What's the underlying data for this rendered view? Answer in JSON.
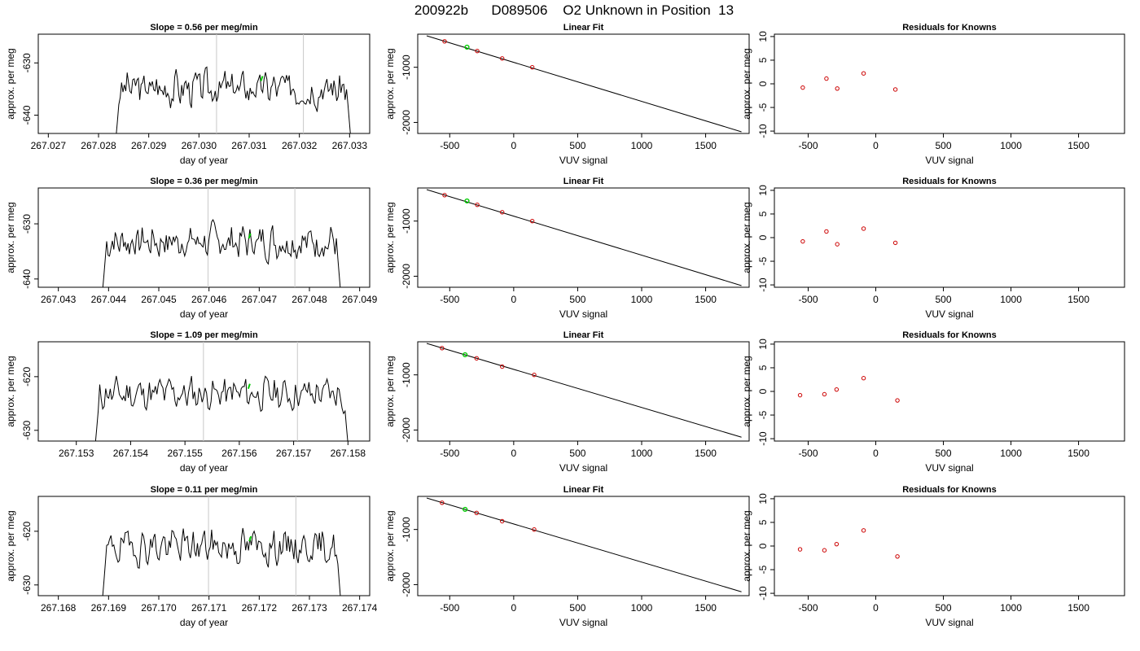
{
  "main_title": "200922b      D089506    O2 Unknown in Position  13",
  "colors": {
    "trace": "#000000",
    "vline": "#c8c8c8",
    "known_point": "#cc0000",
    "unknown_point": "#00cc00",
    "fit_line": "#000000"
  },
  "chart_data": [
    {
      "type": "line",
      "row": 1,
      "panel": "time-series",
      "title": "Slope =  0.56  per meg/min",
      "xlabel": "day of year",
      "ylabel": "approx. per meg",
      "xlim": [
        267.0268,
        267.0334
      ],
      "ylim": [
        -643.5,
        -624.5
      ],
      "xticks": [
        267.027,
        267.028,
        267.029,
        267.03,
        267.031,
        267.032,
        267.033
      ],
      "xtick_labels": [
        "267.027",
        "267.028",
        "267.029",
        "267.030",
        "267.031",
        "267.032",
        "267.033"
      ],
      "yticks": [
        -640,
        -630
      ],
      "ytick_labels": [
        "-640",
        "-630"
      ],
      "vlines": [
        267.03035,
        267.03208
      ],
      "series_range": [
        267.02832,
        267.03305
      ],
      "baseline": -634.8,
      "amplitude": 2.6,
      "seed": 3,
      "green_point": [
        267.03125,
        -633.0
      ]
    },
    {
      "type": "line",
      "row": 2,
      "panel": "time-series",
      "title": "Slope =  0.36  per meg/min",
      "xlabel": "day of year",
      "ylabel": "approx. per meg",
      "xlim": [
        267.0426,
        267.0492
      ],
      "ylim": [
        -641.5,
        -623.5
      ],
      "xticks": [
        267.043,
        267.044,
        267.045,
        267.046,
        267.047,
        267.048,
        267.049
      ],
      "xtick_labels": [
        "267.043",
        "267.044",
        "267.045",
        "267.046",
        "267.047",
        "267.048",
        "267.049"
      ],
      "yticks": [
        -640,
        -630
      ],
      "ytick_labels": [
        "-640",
        "-630"
      ],
      "vlines": [
        267.04598,
        267.04771
      ],
      "series_range": [
        267.04385,
        267.04865
      ],
      "baseline": -633.2,
      "amplitude": 2.4,
      "seed": 7,
      "green_point": [
        267.04681,
        -632.2
      ]
    },
    {
      "type": "line",
      "row": 3,
      "panel": "time-series",
      "title": "Slope =  1.09  per meg/min",
      "xlabel": "day of year",
      "ylabel": "approx. per meg",
      "xlim": [
        267.1523,
        267.1584
      ],
      "ylim": [
        -632.0,
        -613.5
      ],
      "xticks": [
        267.153,
        267.154,
        267.155,
        267.156,
        267.157,
        267.158
      ],
      "xtick_labels": [
        "267.153",
        "267.154",
        "267.155",
        "267.156",
        "267.157",
        "267.158"
      ],
      "yticks": [
        -630,
        -620
      ],
      "ytick_labels": [
        "-630",
        "-620"
      ],
      "vlines": [
        267.15534,
        267.15707
      ],
      "series_range": [
        267.15332,
        267.15803
      ],
      "baseline": -623.2,
      "amplitude": 2.4,
      "seed": 11,
      "green_point": [
        267.15618,
        -621.8
      ]
    },
    {
      "type": "line",
      "row": 4,
      "panel": "time-series",
      "title": "Slope =  0.11  per meg/min",
      "xlabel": "day of year",
      "ylabel": "approx. per meg",
      "xlim": [
        267.1676,
        267.1742
      ],
      "ylim": [
        -632.0,
        -613.5
      ],
      "xticks": [
        267.168,
        267.169,
        267.17,
        267.171,
        267.172,
        267.173,
        267.174
      ],
      "xtick_labels": [
        "267.168",
        "267.169",
        "267.170",
        "267.171",
        "267.172",
        "267.173",
        "267.174"
      ],
      "yticks": [
        -630,
        -620
      ],
      "ytick_labels": [
        "-630",
        "-620"
      ],
      "vlines": [
        267.17099,
        267.17273
      ],
      "series_range": [
        267.16885,
        267.17365
      ],
      "baseline": -622.8,
      "amplitude": 2.5,
      "seed": 19,
      "green_point": [
        267.17182,
        -621.4
      ]
    },
    {
      "type": "scatter",
      "row": 1,
      "panel": "fit",
      "title": "Linear Fit",
      "xlabel": "VUV signal",
      "ylabel": "approx. per meg",
      "xlim": [
        -750,
        1840
      ],
      "ylim": [
        -2200,
        -400
      ],
      "xticks": [
        -500,
        0,
        500,
        1000,
        1500
      ],
      "xtick_labels": [
        "-500",
        "0",
        "500",
        "1000",
        "1500"
      ],
      "yticks": [
        -2000,
        -1000
      ],
      "ytick_labels": [
        "-2000",
        "-1000"
      ],
      "fit_line": [
        [
          -680,
          -430
        ],
        [
          1780,
          -2170
        ]
      ],
      "known_points": [
        [
          -540,
          -530
        ],
        [
          -285,
          -705
        ],
        [
          -90,
          -840
        ],
        [
          145,
          -1000
        ]
      ],
      "unknown_point": [
        -365,
        -635
      ]
    },
    {
      "type": "scatter",
      "row": 2,
      "panel": "fit",
      "title": "Linear Fit",
      "xlabel": "VUV signal",
      "ylabel": "approx. per meg",
      "xlim": [
        -750,
        1840
      ],
      "ylim": [
        -2200,
        -400
      ],
      "xticks": [
        -500,
        0,
        500,
        1000,
        1500
      ],
      "xtick_labels": [
        "-500",
        "0",
        "500",
        "1000",
        "1500"
      ],
      "yticks": [
        -2000,
        -1000
      ],
      "ytick_labels": [
        "-2000",
        "-1000"
      ],
      "fit_line": [
        [
          -680,
          -430
        ],
        [
          1780,
          -2170
        ]
      ],
      "known_points": [
        [
          -540,
          -530
        ],
        [
          -285,
          -705
        ],
        [
          -90,
          -840
        ],
        [
          145,
          -1000
        ]
      ],
      "unknown_point": [
        -365,
        -635
      ]
    },
    {
      "type": "scatter",
      "row": 3,
      "panel": "fit",
      "title": "Linear Fit",
      "xlabel": "VUV signal",
      "ylabel": "approx. per meg",
      "xlim": [
        -750,
        1840
      ],
      "ylim": [
        -2200,
        -400
      ],
      "xticks": [
        -500,
        0,
        500,
        1000,
        1500
      ],
      "xtick_labels": [
        "-500",
        "0",
        "500",
        "1000",
        "1500"
      ],
      "yticks": [
        -2000,
        -1000
      ],
      "ytick_labels": [
        "-2000",
        "-1000"
      ],
      "fit_line": [
        [
          -680,
          -430
        ],
        [
          1780,
          -2130
        ]
      ],
      "known_points": [
        [
          -560,
          -515
        ],
        [
          -290,
          -700
        ],
        [
          -90,
          -850
        ],
        [
          160,
          -1000
        ]
      ],
      "unknown_point": [
        -380,
        -635
      ]
    },
    {
      "type": "scatter",
      "row": 4,
      "panel": "fit",
      "title": "Linear Fit",
      "xlabel": "VUV signal",
      "ylabel": "approx. per meg",
      "xlim": [
        -750,
        1840
      ],
      "ylim": [
        -2200,
        -400
      ],
      "xticks": [
        -500,
        0,
        500,
        1000,
        1500
      ],
      "xtick_labels": [
        "-500",
        "0",
        "500",
        "1000",
        "1500"
      ],
      "yticks": [
        -2000,
        -1000
      ],
      "ytick_labels": [
        "-2000",
        "-1000"
      ],
      "fit_line": [
        [
          -680,
          -430
        ],
        [
          1780,
          -2130
        ]
      ],
      "known_points": [
        [
          -560,
          -515
        ],
        [
          -290,
          -700
        ],
        [
          -90,
          -850
        ],
        [
          160,
          -1000
        ]
      ],
      "unknown_point": [
        -380,
        -635
      ]
    },
    {
      "type": "scatter",
      "row": 1,
      "panel": "residuals",
      "title": "Residuals for Knowns",
      "xlabel": "VUV signal",
      "ylabel": "approx. per meg",
      "xlim": [
        -750,
        1840
      ],
      "ylim": [
        -10.5,
        10.5
      ],
      "xticks": [
        -500,
        0,
        500,
        1000,
        1500
      ],
      "xtick_labels": [
        "-500",
        "0",
        "500",
        "1000",
        "1500"
      ],
      "yticks": [
        -10,
        -5,
        0,
        5,
        10
      ],
      "ytick_labels": [
        "-10",
        "-5",
        "0",
        "5",
        "10"
      ],
      "points": [
        [
          -540,
          -0.8
        ],
        [
          -365,
          1.1
        ],
        [
          -285,
          -1.0
        ],
        [
          -90,
          2.2
        ],
        [
          145,
          -1.2
        ]
      ]
    },
    {
      "type": "scatter",
      "row": 2,
      "panel": "residuals",
      "title": "Residuals for Knowns",
      "xlabel": "VUV signal",
      "ylabel": "approx. per meg",
      "xlim": [
        -750,
        1840
      ],
      "ylim": [
        -10.5,
        10.5
      ],
      "xticks": [
        -500,
        0,
        500,
        1000,
        1500
      ],
      "xtick_labels": [
        "-500",
        "0",
        "500",
        "1000",
        "1500"
      ],
      "yticks": [
        -10,
        -5,
        0,
        5,
        10
      ],
      "ytick_labels": [
        "-10",
        "-5",
        "0",
        "5",
        "10"
      ],
      "points": [
        [
          -540,
          -0.8
        ],
        [
          -365,
          1.3
        ],
        [
          -285,
          -1.4
        ],
        [
          -90,
          1.9
        ],
        [
          145,
          -1.1
        ]
      ]
    },
    {
      "type": "scatter",
      "row": 3,
      "panel": "residuals",
      "title": "Residuals for Knowns",
      "xlabel": "VUV signal",
      "ylabel": "approx. per meg",
      "xlim": [
        -750,
        1840
      ],
      "ylim": [
        -10.5,
        10.5
      ],
      "xticks": [
        -500,
        0,
        500,
        1000,
        1500
      ],
      "xtick_labels": [
        "-500",
        "0",
        "500",
        "1000",
        "1500"
      ],
      "yticks": [
        -10,
        -5,
        0,
        5,
        10
      ],
      "ytick_labels": [
        "-10",
        "-5",
        "0",
        "5",
        "10"
      ],
      "points": [
        [
          -560,
          -0.8
        ],
        [
          -380,
          -0.6
        ],
        [
          -290,
          0.4
        ],
        [
          -90,
          2.8
        ],
        [
          160,
          -1.9
        ]
      ]
    },
    {
      "type": "scatter",
      "row": 4,
      "panel": "residuals",
      "title": "Residuals for Knowns",
      "xlabel": "VUV signal",
      "ylabel": "approx. per meg",
      "xlim": [
        -750,
        1840
      ],
      "ylim": [
        -10.5,
        10.5
      ],
      "xticks": [
        -500,
        0,
        500,
        1000,
        1500
      ],
      "xtick_labels": [
        "-500",
        "0",
        "500",
        "1000",
        "1500"
      ],
      "yticks": [
        -10,
        -5,
        0,
        5,
        10
      ],
      "ytick_labels": [
        "-10",
        "-5",
        "0",
        "5",
        "10"
      ],
      "points": [
        [
          -560,
          -0.7
        ],
        [
          -380,
          -0.9
        ],
        [
          -290,
          0.4
        ],
        [
          -90,
          3.3
        ],
        [
          160,
          -2.2
        ]
      ]
    }
  ]
}
